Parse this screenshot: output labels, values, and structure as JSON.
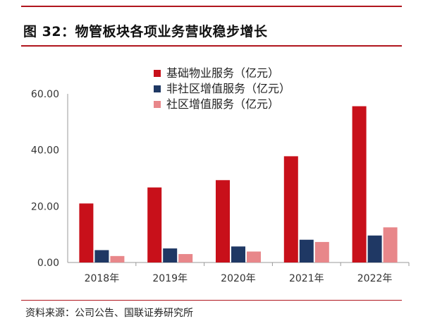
{
  "figure": {
    "title": "图 32：物管板块各项业务营收稳步增长",
    "source": "资料来源：公司公告、国联证券研究所"
  },
  "chart_data": {
    "type": "bar",
    "categories": [
      "2018年",
      "2019年",
      "2020年",
      "2021年",
      "2022年"
    ],
    "series": [
      {
        "name": "基础物业服务（亿元）",
        "color": "#c8101a",
        "values": [
          21.0,
          26.7,
          29.3,
          37.8,
          55.6
        ]
      },
      {
        "name": "非社区增值服务（亿元）",
        "color": "#1f3864",
        "values": [
          4.4,
          5.0,
          5.7,
          8.1,
          9.6
        ]
      },
      {
        "name": "社区增值服务（亿元）",
        "color": "#e8878a",
        "values": [
          2.3,
          3.0,
          3.9,
          7.3,
          12.5
        ]
      }
    ],
    "ylim": [
      0,
      60
    ],
    "yticks": [
      "0.00",
      "20.00",
      "40.00",
      "60.00"
    ],
    "grid": false,
    "legend_position": "top-center"
  }
}
